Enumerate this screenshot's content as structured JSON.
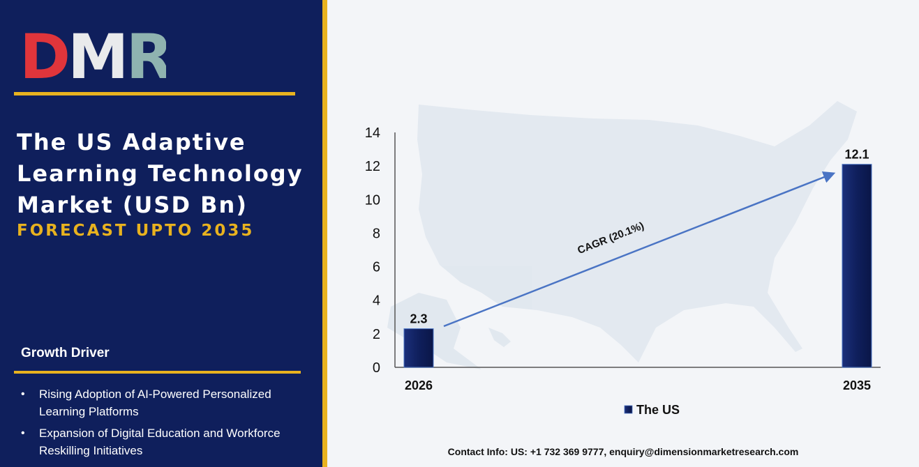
{
  "logo": {
    "text": "DMR",
    "colors": {
      "d": "#e0353b",
      "m": "#e9eaec",
      "r": "#8fb3b0"
    }
  },
  "header": {
    "title": "The US Adaptive Learning Technology Market (USD Bn)",
    "subtitle": "FORECAST UPTO 2035"
  },
  "growth_driver": {
    "heading": "Growth Driver",
    "items": [
      "Rising Adoption of AI-Powered Personalized Learning Platforms",
      "Expansion of Digital Education and Workforce Reskilling Initiatives"
    ]
  },
  "contact": "Contact Info: US: +1 732 369 9777, enquiry@dimensionmarketresearch.com",
  "colors": {
    "navy": "#0f1f5c",
    "gold": "#e8b21f",
    "bar": "#0f1f5c",
    "arrow": "#4a74c4"
  },
  "chart_data": {
    "type": "bar",
    "categories": [
      "2026",
      "2035"
    ],
    "series": [
      {
        "name": "The US",
        "values": [
          2.3,
          12.1
        ]
      }
    ],
    "data_labels": [
      "2.3",
      "12.1"
    ],
    "ylim": [
      0,
      14
    ],
    "yticks": [
      0,
      2,
      4,
      6,
      8,
      10,
      12,
      14
    ],
    "annotation": "CAGR (20.1%)",
    "legend_position": "bottom",
    "grid": false
  }
}
